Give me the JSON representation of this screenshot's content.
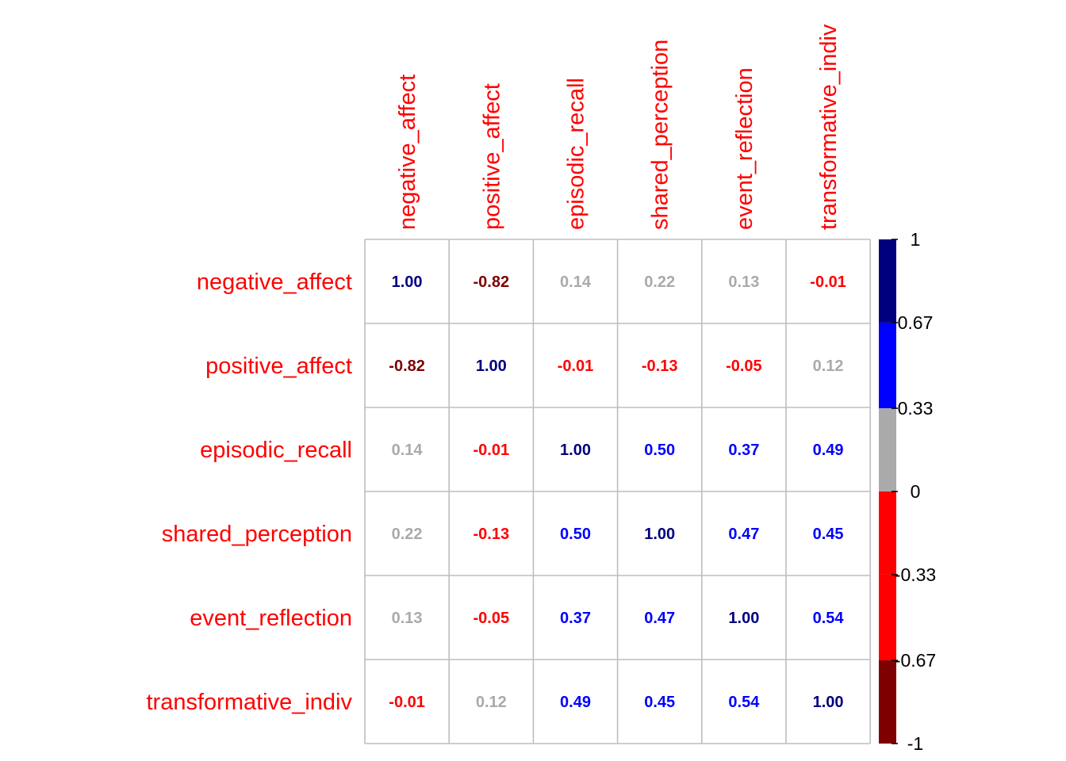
{
  "chart_data": {
    "type": "heatmap",
    "variables": [
      "negative_affect",
      "positive_affect",
      "episodic_recall",
      "shared_perception",
      "event_reflection",
      "transformative_indiv"
    ],
    "matrix": [
      [
        "1.00",
        "-0.82",
        "0.14",
        "0.22",
        "0.13",
        "-0.01"
      ],
      [
        "-0.82",
        "1.00",
        "-0.01",
        "-0.13",
        "-0.05",
        "0.12"
      ],
      [
        "0.14",
        "-0.01",
        "1.00",
        "0.50",
        "0.37",
        "0.49"
      ],
      [
        "0.22",
        "-0.13",
        "0.50",
        "1.00",
        "0.47",
        "0.45"
      ],
      [
        "0.13",
        "-0.05",
        "0.37",
        "0.47",
        "1.00",
        "0.54"
      ],
      [
        "-0.01",
        "0.12",
        "0.49",
        "0.45",
        "0.54",
        "1.00"
      ]
    ],
    "label_color": "#ff0000",
    "grid_color": "#bebebe",
    "legend": {
      "placement": "right",
      "ticks": [
        "1",
        "0.67",
        "0.33",
        "0",
        "-0.33",
        "-0.67",
        "-1"
      ],
      "bins": [
        {
          "from": 0.67,
          "to": 1,
          "color": "#00007f"
        },
        {
          "from": 0.33,
          "to": 0.67,
          "color": "#0000ff"
        },
        {
          "from": 0,
          "to": 0.33,
          "color": "#aaaaaa"
        },
        {
          "from": -0.33,
          "to": 0,
          "color": "#ff0000"
        },
        {
          "from": -0.67,
          "to": -0.33,
          "color": "#ff0000"
        },
        {
          "from": -1,
          "to": -0.67,
          "color": "#7f0000"
        }
      ]
    }
  }
}
